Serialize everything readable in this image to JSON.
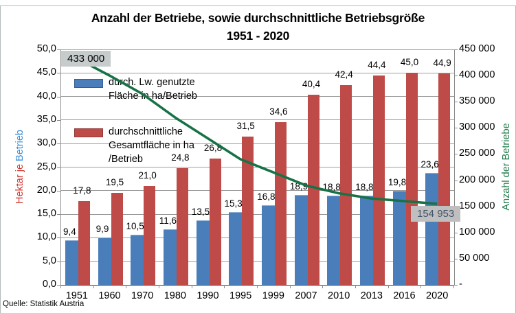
{
  "title": {
    "line1": "Anzahl der Betriebe, sowie durchschnittliche Betriebsgröße",
    "line2": "1951 - 2020"
  },
  "source": "Quelle: Statistik Austria",
  "axes": {
    "left": {
      "title_red": "Hektar je ",
      "title_blue": "Betrieb",
      "ticks": [
        "50,0",
        "45,0",
        "40,0",
        "35,0",
        "30,0",
        "25,0",
        "20,0",
        "15,0",
        "10,0",
        "5,0",
        "0,0"
      ]
    },
    "right": {
      "title": "Anzahl der Betriebe",
      "ticks": [
        "450 000",
        "400 000",
        "350 000",
        "300 000",
        "250 000",
        "200 000",
        "150 000",
        "100 000",
        "50 000",
        "-"
      ]
    },
    "x": {
      "categories": [
        "1951",
        "1960",
        "1970",
        "1980",
        "1990",
        "1995",
        "1999",
        "2007",
        "2010",
        "2013",
        "2016",
        "2020"
      ]
    }
  },
  "legend": {
    "items": [
      {
        "lines": [
          "durch. Lw. genutzte",
          "Fläche in ha/Betrieb"
        ],
        "swatch": "blue"
      },
      {
        "lines": [
          "durchschnittliche",
          "Gesamtfläche in ha",
          "/Betrieb"
        ],
        "swatch": "red"
      }
    ]
  },
  "annotations": {
    "line_start": "433 000",
    "line_end": "154 953"
  },
  "colors": {
    "bar_blue": "#4a7ebb",
    "bar_red": "#be4b48",
    "line_green": "#177245",
    "left_title_red": "#d0382e",
    "left_title_blue": "#3a8dd8",
    "right_title_green": "#1e7a46",
    "callout_bg": "#c6cbcb",
    "callout_end_bg": "#bfbfbf",
    "callout_end_text": "#44546a"
  },
  "chart_data": {
    "type": "bar",
    "title": "Anzahl der Betriebe, sowie durchschnittliche Betriebsgröße 1951 - 2020",
    "categories": [
      "1951",
      "1960",
      "1970",
      "1980",
      "1990",
      "1995",
      "1999",
      "2007",
      "2010",
      "2013",
      "2016",
      "2020"
    ],
    "left_axis": {
      "label": "Hektar je Betrieb",
      "ylim": [
        0,
        50
      ],
      "tick_step": 5
    },
    "right_axis": {
      "label": "Anzahl der Betriebe",
      "ylim": [
        0,
        450000
      ],
      "tick_step": 50000
    },
    "grid": true,
    "legend_position": "inside-top-left",
    "series": [
      {
        "name": "durch. Lw. genutzte Fläche in ha/Betrieb",
        "type": "bar",
        "axis": "left",
        "color": "#4a7ebb",
        "values": [
          9.4,
          9.9,
          10.5,
          11.6,
          13.5,
          15.3,
          16.8,
          18.9,
          18.8,
          18.8,
          19.8,
          23.6
        ]
      },
      {
        "name": "durchschnittliche Gesamtfläche in ha/Betrieb",
        "type": "bar",
        "axis": "left",
        "color": "#be4b48",
        "values": [
          17.8,
          19.5,
          21.0,
          24.8,
          26.8,
          31.5,
          34.6,
          40.4,
          42.4,
          44.4,
          45.0,
          44.9
        ]
      },
      {
        "name": "Anzahl der Betriebe",
        "type": "line",
        "axis": "right",
        "color": "#177245",
        "values": [
          433000,
          400000,
          365000,
          320000,
          280000,
          240000,
          215000,
          190000,
          175000,
          165000,
          160000,
          154953
        ],
        "labeled_points": {
          "first": "433 000",
          "last": "154 953"
        }
      }
    ]
  }
}
